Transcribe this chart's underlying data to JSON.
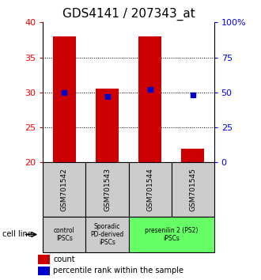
{
  "title": "GDS4141 / 207343_at",
  "samples": [
    "GSM701542",
    "GSM701543",
    "GSM701544",
    "GSM701545"
  ],
  "count_values": [
    38.0,
    30.5,
    38.0,
    22.0
  ],
  "percentile_values": [
    50.0,
    47.0,
    52.0,
    48.0
  ],
  "ylim_left": [
    20,
    40
  ],
  "ylim_right": [
    0,
    100
  ],
  "yticks_left": [
    20,
    25,
    30,
    35,
    40
  ],
  "yticks_right": [
    0,
    25,
    50,
    75,
    100
  ],
  "ytick_labels_right": [
    "0",
    "25",
    "50",
    "75",
    "100%"
  ],
  "bar_color": "#cc0000",
  "dot_color": "#0000cc",
  "bar_bottom": 20,
  "groups": [
    {
      "label": "control\nIPSCs",
      "start": 0,
      "end": 1,
      "color": "#cccccc"
    },
    {
      "label": "Sporadic\nPD-derived\niPSCs",
      "start": 1,
      "end": 2,
      "color": "#cccccc"
    },
    {
      "label": "presenilin 2 (PS2)\niPSCs",
      "start": 2,
      "end": 4,
      "color": "#66ff66"
    }
  ],
  "cell_line_label": "cell line",
  "legend_count_label": "count",
  "legend_percentile_label": "percentile rank within the sample",
  "sample_box_color": "#cccccc",
  "title_fontsize": 11,
  "tick_fontsize": 8,
  "bar_width": 0.55
}
